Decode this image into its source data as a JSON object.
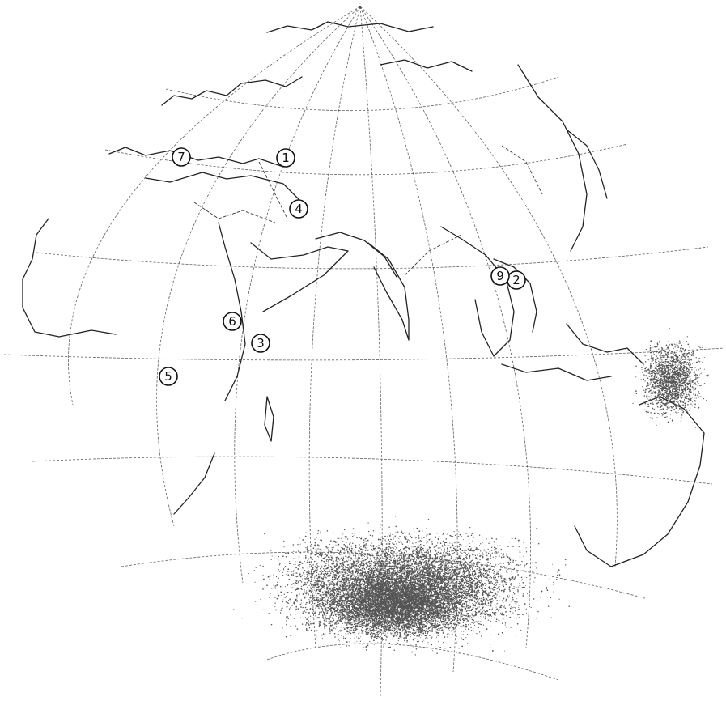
{
  "map": {
    "projection": "orthographic",
    "colors": {
      "ink": "#111111",
      "paper": "#ffffff",
      "stipple": "#555555"
    },
    "markers": [
      {
        "id": "marker-1",
        "label": "1"
      },
      {
        "id": "marker-2",
        "label": "2"
      },
      {
        "id": "marker-3",
        "label": "3"
      },
      {
        "id": "marker-4",
        "label": "4"
      },
      {
        "id": "marker-5",
        "label": "5"
      },
      {
        "id": "marker-6",
        "label": "6"
      },
      {
        "id": "marker-7",
        "label": "7"
      },
      {
        "id": "marker-9",
        "label": "9"
      }
    ]
  }
}
